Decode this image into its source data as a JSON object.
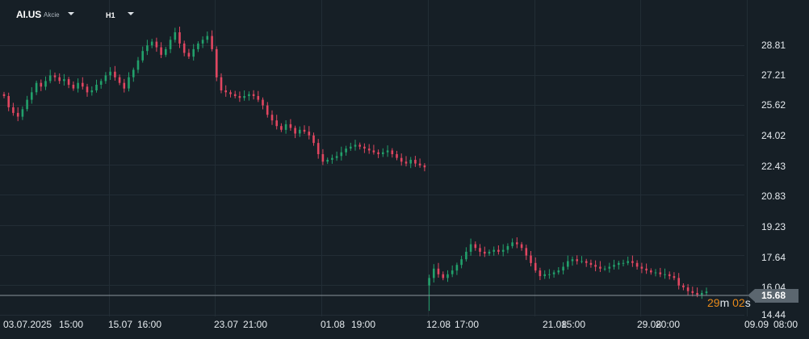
{
  "toolbar": {
    "symbol": "AI.US",
    "symbol_type": "Akcie",
    "timeframe": "H1"
  },
  "price_axis": {
    "labels": [
      "28.81",
      "27.21",
      "25.62",
      "24.02",
      "22.43",
      "20.83",
      "19.23",
      "17.64",
      "16.04",
      "14.44"
    ]
  },
  "time_axis": {
    "labels": [
      "03.07.2025",
      "15:00",
      "15.07",
      "16:00",
      "23.07",
      "21:00",
      "01.08",
      "19:00",
      "12.08",
      "17:00",
      "21.08",
      "15:00",
      "29.08",
      "20:00",
      "09.09",
      "08:00"
    ]
  },
  "last_price": {
    "value": "15.68",
    "countdown_minutes": "29",
    "countdown_minutes_unit": "m",
    "countdown_seconds": "02",
    "countdown_seconds_unit": "s"
  },
  "colors": {
    "background": "#161f26",
    "grid": "#222d35",
    "bull": "#22a06b",
    "bear": "#e04660",
    "countdown": "#e88a1a",
    "price_tag": "#5b666f"
  },
  "chart_data": {
    "type": "candlestick",
    "symbol": "AI.US",
    "timeframe": "H1",
    "ylim": [
      14.0,
      30.5
    ],
    "y_ticks": [
      28.81,
      27.21,
      25.62,
      24.02,
      22.43,
      20.83,
      19.23,
      17.64,
      16.04,
      14.44
    ],
    "x_tick_labels": [
      "03.07.2025 15:00",
      "15.07 16:00",
      "23.07 21:00",
      "01.08 19:00",
      "12.08 17:00",
      "21.08 15:00",
      "29.08 20:00",
      "09.09 08:00"
    ],
    "last_price": 15.68,
    "grid": true,
    "close_path": [
      26.1,
      25.5,
      25.2,
      25.0,
      25.4,
      25.9,
      26.3,
      26.8,
      26.6,
      26.9,
      27.2,
      27.1,
      26.9,
      27.0,
      26.7,
      26.5,
      26.8,
      26.6,
      26.3,
      26.4,
      26.7,
      26.9,
      27.2,
      27.4,
      27.1,
      26.8,
      26.5,
      27.1,
      27.5,
      28.0,
      28.5,
      28.8,
      29.0,
      28.7,
      28.3,
      28.6,
      29.1,
      29.5,
      28.9,
      28.4,
      28.2,
      28.6,
      28.9,
      29.1,
      29.3,
      28.6,
      27.1,
      26.4,
      26.3,
      26.2,
      26.1,
      26.0,
      26.1,
      26.2,
      26.1,
      25.9,
      25.6,
      25.1,
      24.8,
      24.5,
      24.3,
      24.6,
      24.4,
      24.1,
      24.3,
      24.2,
      24.0,
      23.6,
      23.0,
      22.6,
      22.7,
      22.8,
      22.9,
      23.1,
      23.3,
      23.4,
      23.5,
      23.4,
      23.3,
      23.2,
      23.1,
      23.0,
      23.1,
      23.2,
      23.0,
      22.8,
      22.6,
      22.5,
      22.7,
      22.5,
      22.4,
      22.3,
      16.4,
      16.9,
      16.6,
      16.4,
      16.6,
      16.8,
      17.1,
      17.4,
      17.8,
      18.2,
      18.0,
      17.8,
      17.7,
      17.8,
      17.9,
      17.8,
      17.9,
      18.1,
      18.3,
      18.2,
      18.0,
      17.6,
      17.2,
      16.8,
      16.5,
      16.6,
      16.6,
      16.7,
      16.8,
      17.0,
      17.3,
      17.4,
      17.3,
      17.3,
      17.2,
      17.1,
      17.0,
      16.9,
      16.9,
      17.0,
      17.1,
      17.2,
      17.2,
      17.3,
      17.2,
      17.0,
      16.9,
      16.8,
      16.7,
      16.7,
      16.6,
      16.6,
      16.5,
      16.4,
      16.0,
      15.9,
      15.7,
      15.6,
      15.5,
      15.6,
      15.68
    ]
  }
}
